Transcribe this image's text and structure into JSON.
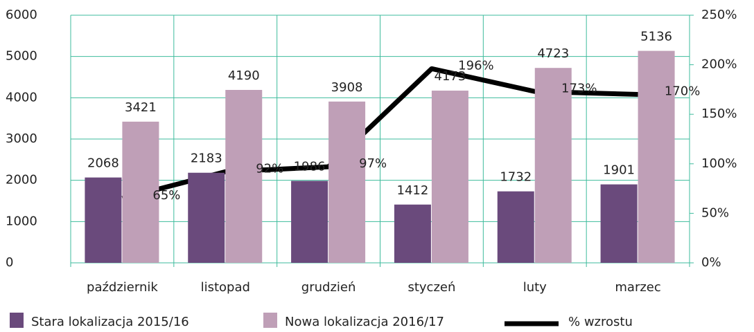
{
  "chart_data": {
    "type": "bar+line",
    "categories": [
      "październik",
      "listopad",
      "grudzień",
      "styczeń",
      "luty",
      "marzec"
    ],
    "series": [
      {
        "name": "Stara lokalizacja 2015/16",
        "color": "#6a4a7c",
        "type": "bar",
        "values": [
          2068,
          2183,
          1986,
          1412,
          1732,
          1901
        ]
      },
      {
        "name": "Nowa lokalizacja 2016/17",
        "color": "#bf9fb7",
        "type": "bar",
        "values": [
          3421,
          4190,
          3908,
          4173,
          4723,
          5136
        ]
      },
      {
        "name": "% wzrostu",
        "color": "#000000",
        "type": "line",
        "axis": "y2",
        "values": [
          65,
          92,
          97,
          196,
          173,
          170
        ],
        "value_labels": [
          "65%",
          "92%",
          "97%",
          "196%",
          "173%",
          "170%"
        ]
      }
    ],
    "ylim": [
      0,
      6000
    ],
    "yticks": [
      0,
      1000,
      2000,
      3000,
      4000,
      5000,
      6000
    ],
    "y2lim": [
      0,
      250
    ],
    "y2ticks": [
      {
        "value": 0,
        "label": "0%"
      },
      {
        "value": 50,
        "label": "50%"
      },
      {
        "value": 100,
        "label": "100%"
      },
      {
        "value": 150,
        "label": "150%"
      },
      {
        "value": 200,
        "label": "200%"
      },
      {
        "value": 250,
        "label": "250%"
      }
    ],
    "grid": true,
    "grid_color": "#3dbb9c",
    "legend": "bottom"
  }
}
